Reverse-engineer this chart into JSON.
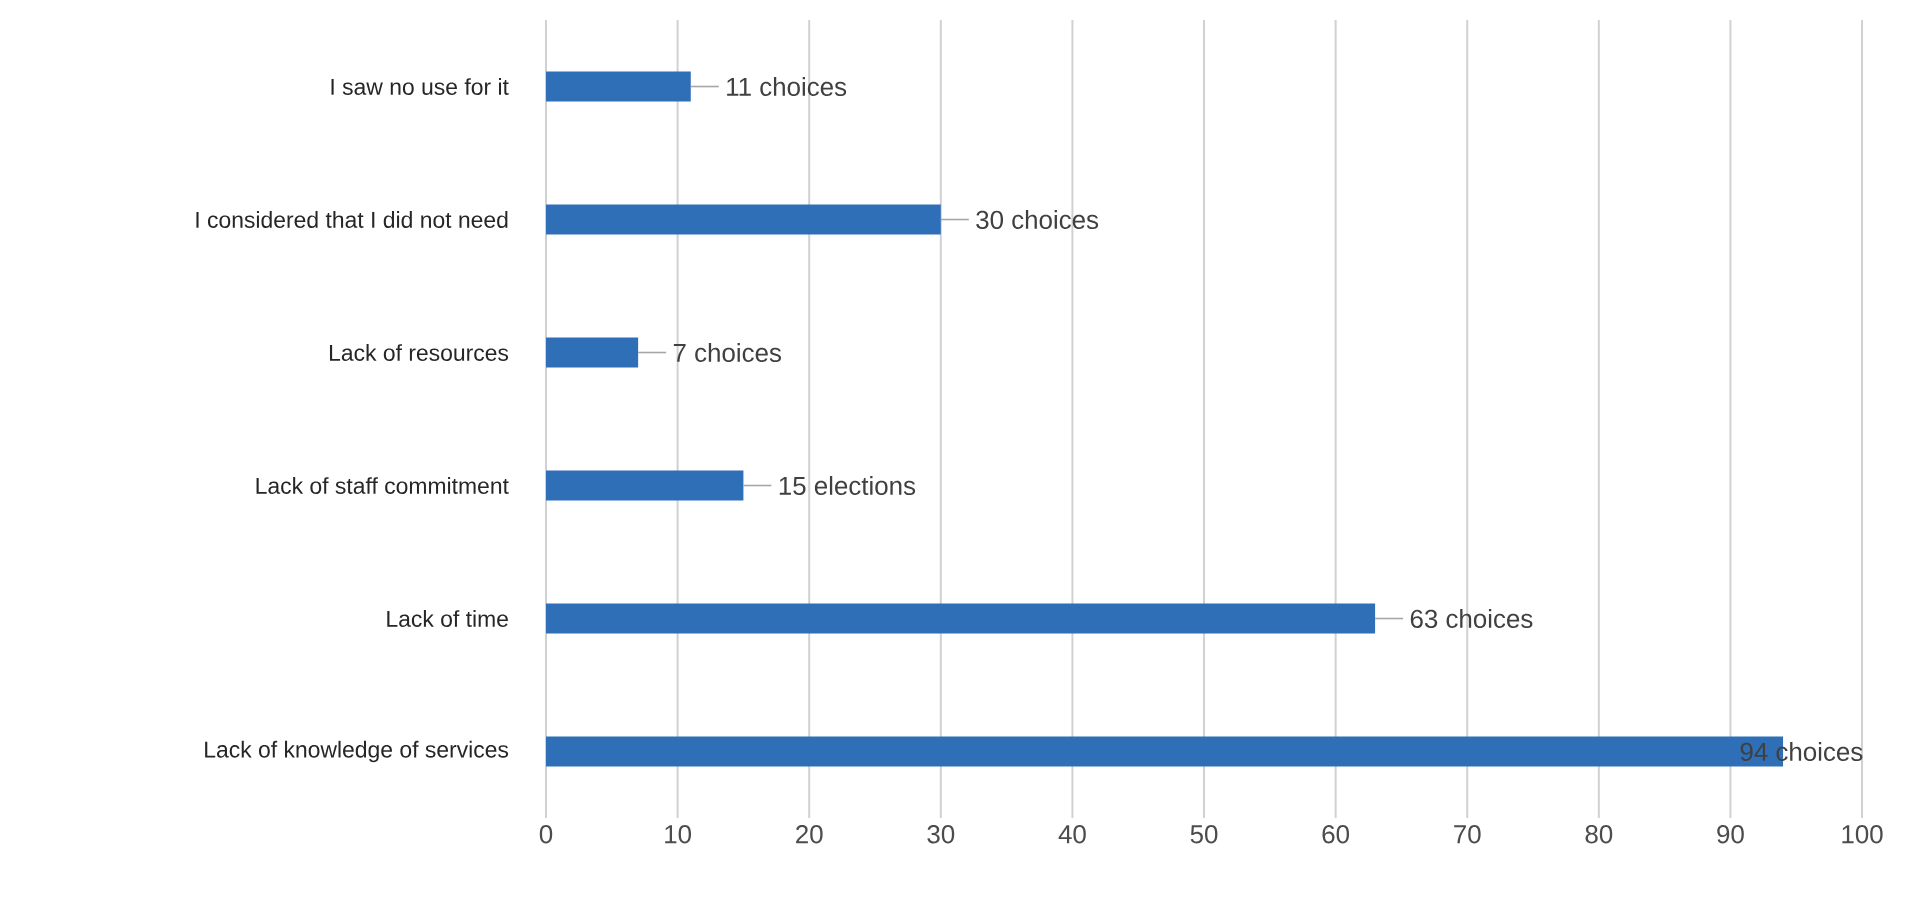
{
  "chart_data": {
    "type": "bar",
    "orientation": "horizontal",
    "categories": [
      "I saw no use for it",
      "I considered that I did not need",
      "Lack of resources",
      "Lack of staff commitment",
      "Lack of time",
      "Lack of knowledge of services"
    ],
    "values": [
      11,
      30,
      7,
      15,
      63,
      94
    ],
    "value_labels": [
      "11 choices",
      "30 choices",
      "7 choices",
      "15 elections",
      "63 choices",
      "94 choices"
    ],
    "color": "#2e6fb8",
    "xlim": [
      0,
      100
    ],
    "xticks": [
      0,
      10,
      20,
      30,
      40,
      50,
      60,
      70,
      80,
      90,
      100
    ],
    "grid": "x"
  }
}
